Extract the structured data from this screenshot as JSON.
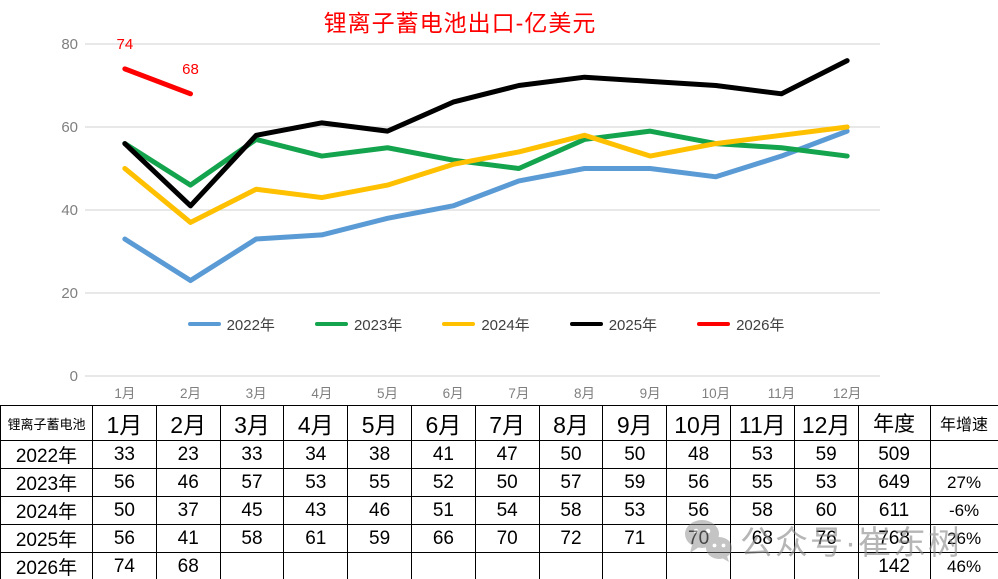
{
  "title": "锂离子蓄电池出口-亿美元",
  "watermark": {
    "text": "公众号·崔东树",
    "icon": "wechat-icon"
  },
  "chart_data": {
    "type": "line",
    "title": "锂离子蓄电池出口-亿美元",
    "title_color": "#ff0000",
    "categories": [
      "1月",
      "2月",
      "3月",
      "4月",
      "5月",
      "6月",
      "7月",
      "8月",
      "9月",
      "10月",
      "11月",
      "12月"
    ],
    "series": [
      {
        "name": "2022年",
        "color": "#5B9BD5",
        "values": [
          33,
          23,
          33,
          34,
          38,
          41,
          47,
          50,
          50,
          48,
          53,
          59
        ]
      },
      {
        "name": "2023年",
        "color": "#14A44D",
        "values": [
          56,
          46,
          57,
          53,
          55,
          52,
          50,
          57,
          59,
          56,
          55,
          53
        ]
      },
      {
        "name": "2024年",
        "color": "#FFC000",
        "values": [
          50,
          37,
          45,
          43,
          46,
          51,
          54,
          58,
          53,
          56,
          58,
          60
        ]
      },
      {
        "name": "2025年",
        "color": "#000000",
        "values": [
          56,
          41,
          58,
          61,
          59,
          66,
          70,
          72,
          71,
          70,
          68,
          76
        ]
      },
      {
        "name": "2026年",
        "color": "#FF0000",
        "values": [
          74,
          68
        ],
        "data_labels": [
          "74",
          "68"
        ]
      }
    ],
    "xlabel": "",
    "ylabel": "",
    "ylim": [
      0,
      80
    ],
    "yticks": [
      0,
      20,
      40,
      60,
      80
    ],
    "grid": true,
    "gridline_color": "#D9D9D9",
    "axis_label_color": "#7F7F7F",
    "legend_position": "bottom-inside"
  },
  "table": {
    "corner_label": "锂离子蓄电池",
    "month_headers": [
      "1月",
      "2月",
      "3月",
      "4月",
      "5月",
      "6月",
      "7月",
      "8月",
      "9月",
      "10月",
      "11月",
      "12月"
    ],
    "annual_header": "年度",
    "growth_header": "年增速",
    "rows": [
      {
        "label": "2022年",
        "monthly": [
          "33",
          "23",
          "33",
          "34",
          "38",
          "41",
          "47",
          "50",
          "50",
          "48",
          "53",
          "59"
        ],
        "annual": "509",
        "growth": ""
      },
      {
        "label": "2023年",
        "monthly": [
          "56",
          "46",
          "57",
          "53",
          "55",
          "52",
          "50",
          "57",
          "59",
          "56",
          "55",
          "53"
        ],
        "annual": "649",
        "growth": "27%"
      },
      {
        "label": "2024年",
        "monthly": [
          "50",
          "37",
          "45",
          "43",
          "46",
          "51",
          "54",
          "58",
          "53",
          "56",
          "58",
          "60"
        ],
        "annual": "611",
        "growth": "-6%"
      },
      {
        "label": "2025年",
        "monthly": [
          "56",
          "41",
          "58",
          "61",
          "59",
          "66",
          "70",
          "72",
          "71",
          "70",
          "68",
          "76"
        ],
        "annual": "768",
        "growth": "26%"
      },
      {
        "label": "2026年",
        "monthly": [
          "74",
          "68",
          "",
          "",
          "",
          "",
          "",
          "",
          "",
          "",
          "",
          ""
        ],
        "annual": "142",
        "growth": "46%"
      }
    ]
  }
}
